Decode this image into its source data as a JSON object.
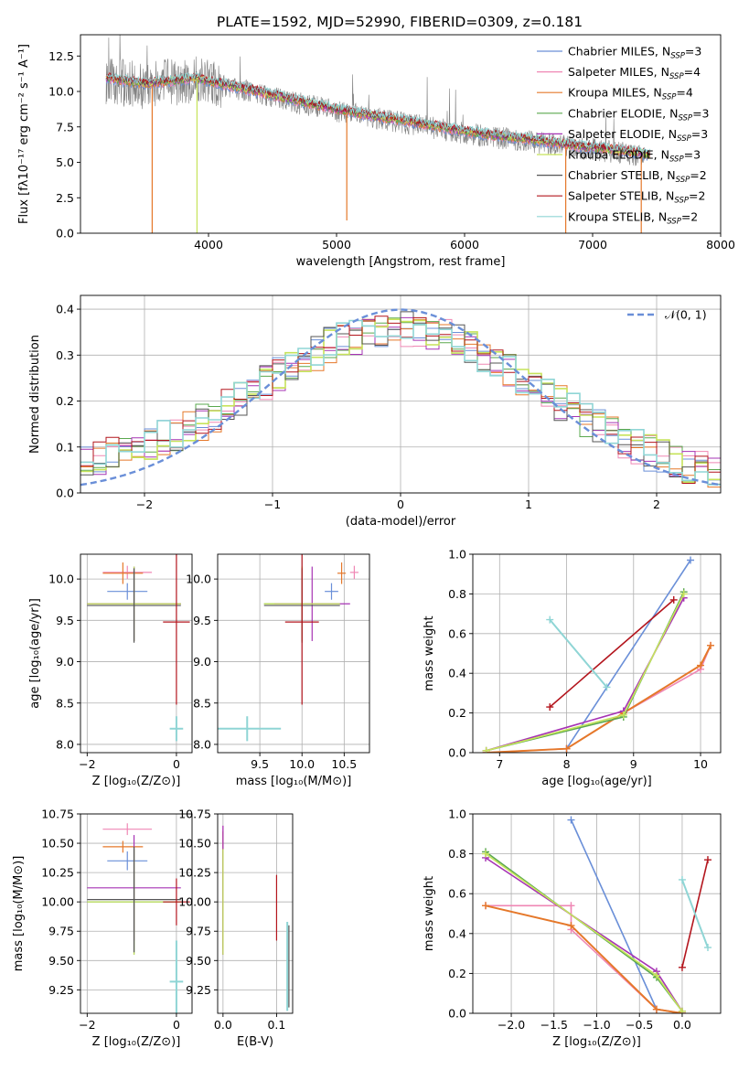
{
  "title": "PLATE=1592, MJD=52990, FIBERID=0309, z=0.181",
  "colors": {
    "chabrier_miles": "#6a8fd8",
    "salpeter_miles": "#ef87b4",
    "kroupa_miles": "#e5782a",
    "chabrier_elodie": "#5aa84e",
    "salpeter_elodie": "#a633b4",
    "kroupa_elodie": "#c6e35a",
    "chabrier_stelib": "#555555",
    "salpeter_stelib": "#b3151d",
    "kroupa_stelib": "#8fd5d5",
    "data": "#808080",
    "normal": "#6a8fd8",
    "grid": "#b0b0b0"
  },
  "legend_spectrum": [
    {
      "name": "Chabrier MILES, N",
      "sub": "SSP",
      "tail": "=3",
      "color_key": "chabrier_miles"
    },
    {
      "name": "Salpeter MILES, N",
      "sub": "SSP",
      "tail": "=4",
      "color_key": "salpeter_miles"
    },
    {
      "name": "Kroupa MILES, N",
      "sub": "SSP",
      "tail": "=4",
      "color_key": "kroupa_miles"
    },
    {
      "name": "Chabrier ELODIE, N",
      "sub": "SSP",
      "tail": "=3",
      "color_key": "chabrier_elodie"
    },
    {
      "name": "Salpeter ELODIE, N",
      "sub": "SSP",
      "tail": "=3",
      "color_key": "salpeter_elodie"
    },
    {
      "name": "Kroupa ELODIE, N",
      "sub": "SSP",
      "tail": "=3",
      "color_key": "kroupa_elodie"
    },
    {
      "name": "Chabrier STELIB, N",
      "sub": "SSP",
      "tail": "=2",
      "color_key": "chabrier_stelib"
    },
    {
      "name": "Salpeter STELIB, N",
      "sub": "SSP",
      "tail": "=2",
      "color_key": "salpeter_stelib"
    },
    {
      "name": "Kroupa STELIB, N",
      "sub": "SSP",
      "tail": "=2",
      "color_key": "kroupa_stelib"
    }
  ],
  "chart_data": [
    {
      "id": "spectrum",
      "type": "line",
      "xlabel": "wavelength [Angstrom, rest frame]",
      "ylabel": "Flux [fλ10⁻¹⁷ erg cm⁻² s⁻¹ A⁻¹]",
      "xlim": [
        3000,
        8000
      ],
      "ylim": [
        0,
        14
      ],
      "xticks": [
        4000,
        5000,
        6000,
        7000,
        8000
      ],
      "yticks": [
        0.0,
        2.5,
        5.0,
        7.5,
        10.0,
        12.5
      ],
      "continuum": {
        "x": [
          3200,
          3500,
          3700,
          3900,
          4000,
          4200,
          4500,
          4800,
          5000,
          5300,
          5600,
          5900,
          6200,
          6500,
          6800,
          7100,
          7300,
          7500
        ],
        "y": [
          10.8,
          10.4,
          10.6,
          10.8,
          10.6,
          10.2,
          9.6,
          9.0,
          8.6,
          8.1,
          7.7,
          7.2,
          6.8,
          6.5,
          6.1,
          5.8,
          5.6,
          5.3
        ]
      },
      "spikes": [
        {
          "x": 3560,
          "y": 0
        },
        {
          "x": 3910,
          "y": 0
        },
        {
          "x": 5080,
          "y": 0.9
        },
        {
          "x": 6790,
          "y": 0
        },
        {
          "x": 7380,
          "y": 0
        }
      ],
      "legend_loc": "right"
    },
    {
      "id": "residuals",
      "type": "step",
      "xlabel": "(data-model)/error",
      "ylabel": "Normed distribution",
      "xlim": [
        -2.5,
        2.5
      ],
      "ylim": [
        0,
        0.43
      ],
      "xticks": [
        -2,
        -1,
        0,
        1,
        2
      ],
      "yticks": [
        0.0,
        0.1,
        0.2,
        0.3,
        0.4
      ],
      "legend": [
        {
          "name": "𝒩(0, 1)",
          "style": "dashed",
          "color_key": "normal"
        }
      ],
      "legend_loc": "upper right",
      "normal": {
        "mu": 0,
        "sigma": 1
      },
      "profile": {
        "x": [
          -2.5,
          -2.0,
          -1.5,
          -1.0,
          -0.5,
          0.0,
          0.5,
          1.0,
          1.5,
          2.0,
          2.5
        ],
        "y": [
          0.07,
          0.1,
          0.16,
          0.25,
          0.33,
          0.36,
          0.33,
          0.24,
          0.15,
          0.08,
          0.04
        ]
      }
    },
    {
      "id": "age_vs_Z",
      "type": "errorbar",
      "xlabel": "Z [log₁₀(Z/Z⊙)]",
      "ylabel": "age  [log₁₀(age/yr)]",
      "xlim": [
        -2.15,
        0.35
      ],
      "ylim": [
        7.9,
        10.3
      ],
      "xticks": [
        -2,
        0
      ],
      "yticks": [
        8.0,
        8.5,
        9.0,
        9.5,
        10.0
      ],
      "points": [
        {
          "key": "chabrier_miles",
          "x": -1.1,
          "xerr": 0.45,
          "y": 9.85,
          "yerr": 0.1
        },
        {
          "key": "salpeter_miles",
          "x": -1.1,
          "xerr": 0.55,
          "y": 10.08,
          "yerr": 0.08
        },
        {
          "key": "kroupa_miles",
          "x": -1.2,
          "xerr": 0.45,
          "y": 10.07,
          "yerr": 0.13
        },
        {
          "key": "chabrier_elodie",
          "x": -0.95,
          "xerr": 1.05,
          "y": 9.7,
          "yerr": 0.45
        },
        {
          "key": "salpeter_elodie",
          "x": -0.95,
          "xerr": 1.05,
          "y": 9.7,
          "yerr": 0.45
        },
        {
          "key": "kroupa_elodie",
          "x": -0.95,
          "xerr": 1.05,
          "y": 9.7,
          "yerr": 0.45
        },
        {
          "key": "chabrier_stelib",
          "x": -0.95,
          "xerr": 1.05,
          "y": 9.68,
          "yerr": 0.45
        },
        {
          "key": "salpeter_stelib",
          "x": 0.0,
          "xerr": 0.3,
          "y": 9.48,
          "yerr": 1.0
        },
        {
          "key": "kroupa_stelib",
          "x": 0.0,
          "xerr": 0.15,
          "y": 8.19,
          "yerr": 0.15
        }
      ]
    },
    {
      "id": "age_vs_mass",
      "type": "errorbar",
      "xlabel": "mass [log₁₀(M/M⊙)]",
      "ylabel": "",
      "xlim": [
        9.0,
        10.8
      ],
      "ylim": [
        7.9,
        10.3
      ],
      "xticks": [
        9.5,
        10.0,
        10.5
      ],
      "yticks": [
        8.0,
        8.5,
        9.0,
        9.5,
        10.0
      ],
      "points": [
        {
          "key": "chabrier_miles",
          "x": 10.35,
          "xerr": 0.08,
          "y": 9.85,
          "yerr": 0.1
        },
        {
          "key": "salpeter_miles",
          "x": 10.62,
          "xerr": 0.05,
          "y": 10.08,
          "yerr": 0.08
        },
        {
          "key": "kroupa_miles",
          "x": 10.47,
          "xerr": 0.05,
          "y": 10.07,
          "yerr": 0.13
        },
        {
          "key": "chabrier_elodie",
          "x": 10.0,
          "xerr": 0.45,
          "y": 9.7,
          "yerr": 0.45
        },
        {
          "key": "salpeter_elodie",
          "x": 10.12,
          "xerr": 0.45,
          "y": 9.7,
          "yerr": 0.45
        },
        {
          "key": "kroupa_elodie",
          "x": 10.0,
          "xerr": 0.45,
          "y": 9.7,
          "yerr": 0.45
        },
        {
          "key": "chabrier_stelib",
          "x": 10.0,
          "xerr": 0.45,
          "y": 9.68,
          "yerr": 0.45
        },
        {
          "key": "salpeter_stelib",
          "x": 10.0,
          "xerr": 0.2,
          "y": 9.48,
          "yerr": 1.0
        },
        {
          "key": "kroupa_stelib",
          "x": 9.35,
          "xerr": 0.4,
          "y": 8.19,
          "yerr": 0.15
        }
      ]
    },
    {
      "id": "weight_vs_age",
      "type": "line",
      "xlabel": "age  [log₁₀(age/yr)]",
      "ylabel": "mass weight",
      "xlim": [
        6.6,
        10.3
      ],
      "ylim": [
        0,
        1.0
      ],
      "xticks": [
        7,
        8,
        9,
        10
      ],
      "yticks": [
        0.0,
        0.2,
        0.4,
        0.6,
        0.8,
        1.0
      ],
      "series": [
        {
          "key": "chabrier_miles",
          "x": [
            8.0,
            9.85
          ],
          "y": [
            0.02,
            0.97
          ]
        },
        {
          "key": "salpeter_miles",
          "x": [
            6.8,
            8.0,
            8.85,
            10.0,
            10.15
          ],
          "y": [
            0.0,
            0.02,
            0.2,
            0.42,
            0.54
          ]
        },
        {
          "key": "kroupa_miles",
          "x": [
            6.8,
            8.0,
            8.85,
            10.0,
            10.15
          ],
          "y": [
            0.0,
            0.02,
            0.2,
            0.44,
            0.54
          ]
        },
        {
          "key": "chabrier_elodie",
          "x": [
            6.8,
            8.85,
            9.75
          ],
          "y": [
            0.01,
            0.18,
            0.81
          ]
        },
        {
          "key": "salpeter_elodie",
          "x": [
            6.8,
            8.85,
            9.75
          ],
          "y": [
            0.01,
            0.21,
            0.78
          ]
        },
        {
          "key": "kroupa_elodie",
          "x": [
            6.8,
            8.85,
            9.75
          ],
          "y": [
            0.01,
            0.19,
            0.8
          ]
        },
        {
          "key": "salpeter_stelib",
          "x": [
            7.75,
            9.6
          ],
          "y": [
            0.23,
            0.77
          ]
        },
        {
          "key": "kroupa_stelib",
          "x": [
            7.75,
            8.6
          ],
          "y": [
            0.67,
            0.33
          ]
        }
      ]
    },
    {
      "id": "mass_vs_Z",
      "type": "errorbar",
      "xlabel": "Z [log₁₀(Z/Z⊙)]",
      "ylabel": "mass [log₁₀(M/M⊙)]",
      "xlim": [
        -2.15,
        0.35
      ],
      "ylim": [
        9.05,
        10.75
      ],
      "xticks": [
        -2,
        0
      ],
      "yticks": [
        9.25,
        9.5,
        9.75,
        10.0,
        10.25,
        10.5,
        10.75
      ],
      "points": [
        {
          "key": "chabrier_miles",
          "x": -1.1,
          "xerr": 0.45,
          "y": 10.35,
          "yerr": 0.08
        },
        {
          "key": "salpeter_miles",
          "x": -1.1,
          "xerr": 0.55,
          "y": 10.62,
          "yerr": 0.05
        },
        {
          "key": "kroupa_miles",
          "x": -1.2,
          "xerr": 0.45,
          "y": 10.47,
          "yerr": 0.05
        },
        {
          "key": "chabrier_elodie",
          "x": -0.95,
          "xerr": 1.05,
          "y": 10.0,
          "yerr": 0.45
        },
        {
          "key": "salpeter_elodie",
          "x": -0.95,
          "xerr": 1.05,
          "y": 10.12,
          "yerr": 0.45
        },
        {
          "key": "kroupa_elodie",
          "x": -0.95,
          "xerr": 1.05,
          "y": 10.0,
          "yerr": 0.45
        },
        {
          "key": "chabrier_stelib",
          "x": -0.95,
          "xerr": 1.05,
          "y": 10.02,
          "yerr": 0.45
        },
        {
          "key": "salpeter_stelib",
          "x": 0.0,
          "xerr": 0.3,
          "y": 10.0,
          "yerr": 0.2
        },
        {
          "key": "kroupa_stelib",
          "x": 0.0,
          "xerr": 0.15,
          "y": 9.32,
          "yerr": 0.35
        }
      ]
    },
    {
      "id": "mass_vs_ebv",
      "type": "errorbar",
      "xlabel": "E(B-V)",
      "ylabel": "",
      "xlim": [
        -0.01,
        0.13
      ],
      "ylim": [
        9.05,
        10.75
      ],
      "xticks": [
        0.0,
        0.1
      ],
      "yticks": [
        9.25,
        9.5,
        9.75,
        10.0,
        10.25,
        10.5,
        10.75
      ],
      "points": [
        {
          "key": "chabrier_miles",
          "x": 0.0,
          "y": 10.1,
          "yerr": 0.5
        },
        {
          "key": "salpeter_miles",
          "x": 0.0,
          "y": 10.1,
          "yerr": 0.55
        },
        {
          "key": "kroupa_miles",
          "x": 0.0,
          "y": 10.1,
          "yerr": 0.5
        },
        {
          "key": "chabrier_elodie",
          "x": 0.0,
          "y": 10.0,
          "yerr": 0.45
        },
        {
          "key": "salpeter_elodie",
          "x": 0.0,
          "y": 10.1,
          "yerr": 0.55
        },
        {
          "key": "kroupa_elodie",
          "x": 0.0,
          "y": 10.0,
          "yerr": 0.45
        },
        {
          "key": "salpeter_stelib",
          "x": 0.1,
          "y": 9.95,
          "yerr": 0.28
        },
        {
          "key": "kroupa_stelib",
          "x": 0.12,
          "y": 9.45,
          "yerr": 0.38
        },
        {
          "key": "chabrier_stelib",
          "x": 0.123,
          "y": 9.45,
          "yerr": 0.35
        }
      ]
    },
    {
      "id": "weight_vs_Z",
      "type": "line",
      "xlabel": "Z [log₁₀(Z/Z⊙)]",
      "ylabel": "mass weight",
      "xlim": [
        -2.45,
        0.45
      ],
      "ylim": [
        0,
        1.0
      ],
      "xticks": [
        -2.0,
        -1.5,
        -1.0,
        -0.5,
        0.0
      ],
      "yticks": [
        0.0,
        0.2,
        0.4,
        0.6,
        0.8,
        1.0
      ],
      "series": [
        {
          "key": "chabrier_miles",
          "x": [
            -1.3,
            -0.3,
            0.0
          ],
          "y": [
            0.97,
            0.02,
            0.0
          ]
        },
        {
          "key": "salpeter_miles",
          "x": [
            -2.3,
            -1.3,
            -1.3,
            -0.3,
            0.0
          ],
          "y": [
            0.54,
            0.54,
            0.42,
            0.02,
            0.0
          ]
        },
        {
          "key": "kroupa_miles",
          "x": [
            -2.3,
            -1.3,
            -0.3,
            0.0
          ],
          "y": [
            0.54,
            0.44,
            0.02,
            0.0
          ]
        },
        {
          "key": "chabrier_elodie",
          "x": [
            -2.3,
            -0.3,
            0.0
          ],
          "y": [
            0.81,
            0.18,
            0.01
          ]
        },
        {
          "key": "salpeter_elodie",
          "x": [
            -2.3,
            -0.3,
            0.0
          ],
          "y": [
            0.78,
            0.21,
            0.01
          ]
        },
        {
          "key": "kroupa_elodie",
          "x": [
            -2.3,
            -0.3,
            0.0
          ],
          "y": [
            0.8,
            0.19,
            0.01
          ]
        },
        {
          "key": "salpeter_stelib",
          "x": [
            0.0,
            0.3
          ],
          "y": [
            0.23,
            0.77
          ]
        },
        {
          "key": "kroupa_stelib",
          "x": [
            0.0,
            0.3
          ],
          "y": [
            0.67,
            0.33
          ]
        }
      ]
    }
  ]
}
